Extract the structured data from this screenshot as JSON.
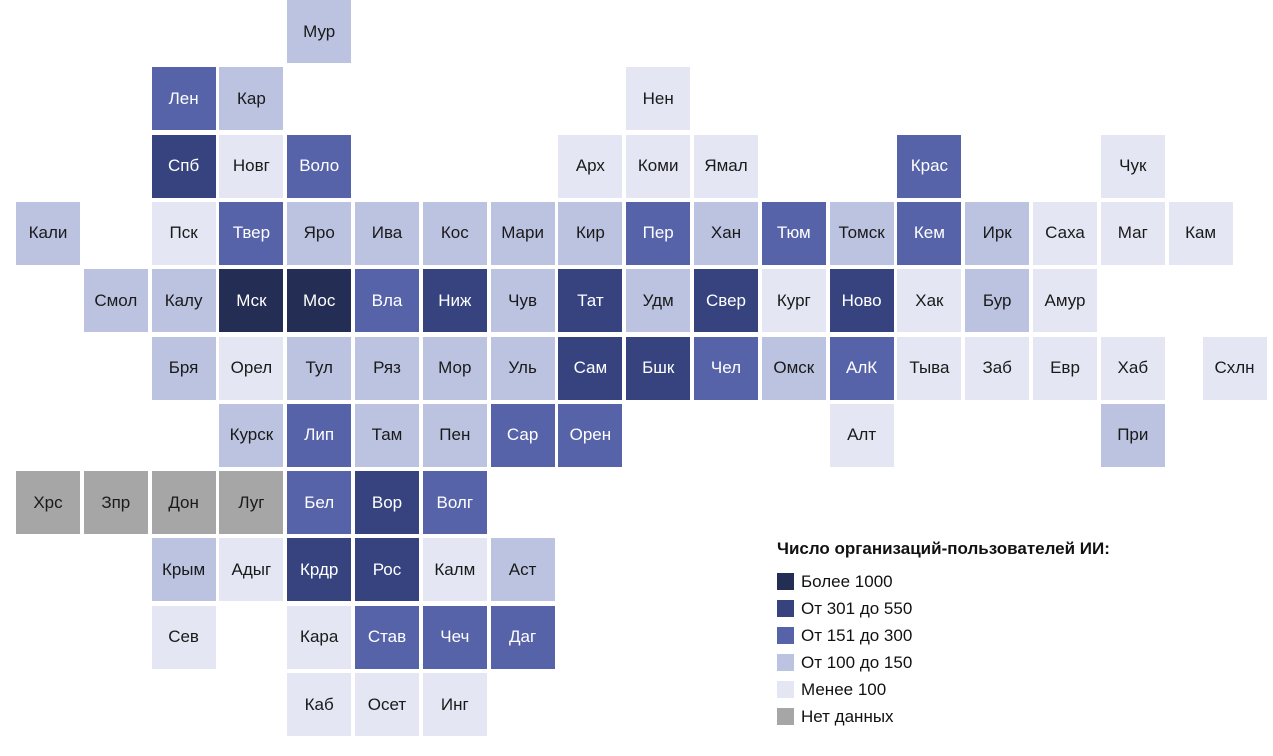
{
  "chart_data": {
    "type": "heatmap",
    "legend": {
      "title": "Число организаций-пользователей ИИ:",
      "items": [
        {
          "key": "c5",
          "label": "Более 1000",
          "color": "#242d53"
        },
        {
          "key": "c4",
          "label": "От 301 до 550",
          "color": "#36437f"
        },
        {
          "key": "c3",
          "label": "От 151 до 300",
          "color": "#5663a9"
        },
        {
          "key": "c2",
          "label": "От 100 до 150",
          "color": "#bbc3e0"
        },
        {
          "key": "c1",
          "label": "Менее 100",
          "color": "#e4e7f3"
        },
        {
          "key": "nd",
          "label": "Нет данных",
          "color": "#a6a6a6"
        }
      ]
    },
    "tiles": [
      {
        "label": "Мур",
        "col": 4,
        "row": 0,
        "cat": "c2"
      },
      {
        "label": "Лен",
        "col": 2,
        "row": 1,
        "cat": "c3"
      },
      {
        "label": "Кар",
        "col": 3,
        "row": 1,
        "cat": "c2"
      },
      {
        "label": "Нен",
        "col": 9,
        "row": 1,
        "cat": "c1"
      },
      {
        "label": "Спб",
        "col": 2,
        "row": 2,
        "cat": "c4"
      },
      {
        "label": "Новг",
        "col": 3,
        "row": 2,
        "cat": "c1"
      },
      {
        "label": "Воло",
        "col": 4,
        "row": 2,
        "cat": "c3"
      },
      {
        "label": "Арх",
        "col": 8,
        "row": 2,
        "cat": "c1"
      },
      {
        "label": "Коми",
        "col": 9,
        "row": 2,
        "cat": "c1"
      },
      {
        "label": "Ямал",
        "col": 10,
        "row": 2,
        "cat": "c1"
      },
      {
        "label": "Крас",
        "col": 13,
        "row": 2,
        "cat": "c3"
      },
      {
        "label": "Чук",
        "col": 16,
        "row": 2,
        "cat": "c1"
      },
      {
        "label": "Кали",
        "col": 0,
        "row": 3,
        "cat": "c2"
      },
      {
        "label": "Пск",
        "col": 2,
        "row": 3,
        "cat": "c1"
      },
      {
        "label": "Твер",
        "col": 3,
        "row": 3,
        "cat": "c3"
      },
      {
        "label": "Яро",
        "col": 4,
        "row": 3,
        "cat": "c2"
      },
      {
        "label": "Ива",
        "col": 5,
        "row": 3,
        "cat": "c2"
      },
      {
        "label": "Кос",
        "col": 6,
        "row": 3,
        "cat": "c2"
      },
      {
        "label": "Мари",
        "col": 7,
        "row": 3,
        "cat": "c2"
      },
      {
        "label": "Кир",
        "col": 8,
        "row": 3,
        "cat": "c2"
      },
      {
        "label": "Пер",
        "col": 9,
        "row": 3,
        "cat": "c3"
      },
      {
        "label": "Хан",
        "col": 10,
        "row": 3,
        "cat": "c2"
      },
      {
        "label": "Тюм",
        "col": 11,
        "row": 3,
        "cat": "c3"
      },
      {
        "label": "Томск",
        "col": 12,
        "row": 3,
        "cat": "c2"
      },
      {
        "label": "Кем",
        "col": 13,
        "row": 3,
        "cat": "c3"
      },
      {
        "label": "Ирк",
        "col": 14,
        "row": 3,
        "cat": "c2"
      },
      {
        "label": "Саха",
        "col": 15,
        "row": 3,
        "cat": "c1"
      },
      {
        "label": "Маг",
        "col": 16,
        "row": 3,
        "cat": "c1"
      },
      {
        "label": "Кам",
        "col": 17,
        "row": 3,
        "cat": "c1"
      },
      {
        "label": "Смол",
        "col": 1,
        "row": 4,
        "cat": "c2"
      },
      {
        "label": "Калу",
        "col": 2,
        "row": 4,
        "cat": "c2"
      },
      {
        "label": "Мск",
        "col": 3,
        "row": 4,
        "cat": "c5"
      },
      {
        "label": "Мос",
        "col": 4,
        "row": 4,
        "cat": "c5"
      },
      {
        "label": "Вла",
        "col": 5,
        "row": 4,
        "cat": "c3"
      },
      {
        "label": "Ниж",
        "col": 6,
        "row": 4,
        "cat": "c4"
      },
      {
        "label": "Чув",
        "col": 7,
        "row": 4,
        "cat": "c2"
      },
      {
        "label": "Тат",
        "col": 8,
        "row": 4,
        "cat": "c4"
      },
      {
        "label": "Удм",
        "col": 9,
        "row": 4,
        "cat": "c2"
      },
      {
        "label": "Свер",
        "col": 10,
        "row": 4,
        "cat": "c4"
      },
      {
        "label": "Кург",
        "col": 11,
        "row": 4,
        "cat": "c1"
      },
      {
        "label": "Ново",
        "col": 12,
        "row": 4,
        "cat": "c4"
      },
      {
        "label": "Хак",
        "col": 13,
        "row": 4,
        "cat": "c1"
      },
      {
        "label": "Бур",
        "col": 14,
        "row": 4,
        "cat": "c2"
      },
      {
        "label": "Амур",
        "col": 15,
        "row": 4,
        "cat": "c1"
      },
      {
        "label": "Бря",
        "col": 2,
        "row": 5,
        "cat": "c2"
      },
      {
        "label": "Орел",
        "col": 3,
        "row": 5,
        "cat": "c1"
      },
      {
        "label": "Тул",
        "col": 4,
        "row": 5,
        "cat": "c2"
      },
      {
        "label": "Ряз",
        "col": 5,
        "row": 5,
        "cat": "c2"
      },
      {
        "label": "Мор",
        "col": 6,
        "row": 5,
        "cat": "c2"
      },
      {
        "label": "Уль",
        "col": 7,
        "row": 5,
        "cat": "c2"
      },
      {
        "label": "Сам",
        "col": 8,
        "row": 5,
        "cat": "c4"
      },
      {
        "label": "Бшк",
        "col": 9,
        "row": 5,
        "cat": "c4"
      },
      {
        "label": "Чел",
        "col": 10,
        "row": 5,
        "cat": "c3"
      },
      {
        "label": "Омск",
        "col": 11,
        "row": 5,
        "cat": "c2"
      },
      {
        "label": "АлК",
        "col": 12,
        "row": 5,
        "cat": "c3"
      },
      {
        "label": "Тыва",
        "col": 13,
        "row": 5,
        "cat": "c1"
      },
      {
        "label": "Заб",
        "col": 14,
        "row": 5,
        "cat": "c1"
      },
      {
        "label": "Евр",
        "col": 15,
        "row": 5,
        "cat": "c1"
      },
      {
        "label": "Хаб",
        "col": 16,
        "row": 5,
        "cat": "c1"
      },
      {
        "label": "Схлн",
        "col": 17.5,
        "row": 5,
        "cat": "c1"
      },
      {
        "label": "Курск",
        "col": 3,
        "row": 6,
        "cat": "c2"
      },
      {
        "label": "Лип",
        "col": 4,
        "row": 6,
        "cat": "c3"
      },
      {
        "label": "Там",
        "col": 5,
        "row": 6,
        "cat": "c2"
      },
      {
        "label": "Пен",
        "col": 6,
        "row": 6,
        "cat": "c2"
      },
      {
        "label": "Сар",
        "col": 7,
        "row": 6,
        "cat": "c3"
      },
      {
        "label": "Орен",
        "col": 8,
        "row": 6,
        "cat": "c3"
      },
      {
        "label": "Алт",
        "col": 12,
        "row": 6,
        "cat": "c1"
      },
      {
        "label": "При",
        "col": 16,
        "row": 6,
        "cat": "c2"
      },
      {
        "label": "Хрс",
        "col": 0,
        "row": 7,
        "cat": "nd"
      },
      {
        "label": "Зпр",
        "col": 1,
        "row": 7,
        "cat": "nd"
      },
      {
        "label": "Дон",
        "col": 2,
        "row": 7,
        "cat": "nd"
      },
      {
        "label": "Луг",
        "col": 3,
        "row": 7,
        "cat": "nd"
      },
      {
        "label": "Бел",
        "col": 4,
        "row": 7,
        "cat": "c3"
      },
      {
        "label": "Вор",
        "col": 5,
        "row": 7,
        "cat": "c4"
      },
      {
        "label": "Волг",
        "col": 6,
        "row": 7,
        "cat": "c3"
      },
      {
        "label": "Крым",
        "col": 2,
        "row": 8,
        "cat": "c2"
      },
      {
        "label": "Адыг",
        "col": 3,
        "row": 8,
        "cat": "c1"
      },
      {
        "label": "Крдр",
        "col": 4,
        "row": 8,
        "cat": "c4"
      },
      {
        "label": "Рос",
        "col": 5,
        "row": 8,
        "cat": "c4"
      },
      {
        "label": "Калм",
        "col": 6,
        "row": 8,
        "cat": "c1"
      },
      {
        "label": "Аст",
        "col": 7,
        "row": 8,
        "cat": "c2"
      },
      {
        "label": "Сев",
        "col": 2,
        "row": 9,
        "cat": "c1"
      },
      {
        "label": "Кара",
        "col": 4,
        "row": 9,
        "cat": "c1"
      },
      {
        "label": "Став",
        "col": 5,
        "row": 9,
        "cat": "c3"
      },
      {
        "label": "Чеч",
        "col": 6,
        "row": 9,
        "cat": "c3"
      },
      {
        "label": "Даг",
        "col": 7,
        "row": 9,
        "cat": "c3"
      },
      {
        "label": "Каб",
        "col": 4,
        "row": 10,
        "cat": "c1"
      },
      {
        "label": "Осет",
        "col": 5,
        "row": 10,
        "cat": "c1"
      },
      {
        "label": "Инг",
        "col": 6,
        "row": 10,
        "cat": "c1"
      }
    ]
  }
}
